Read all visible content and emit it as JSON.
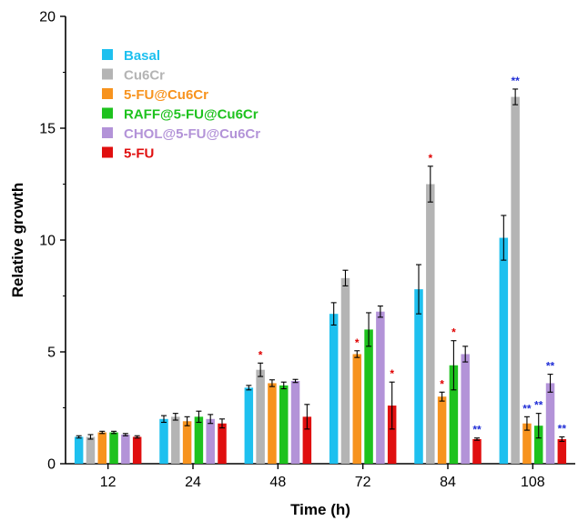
{
  "chart_data": {
    "type": "bar",
    "title": "",
    "xlabel": "Time (h)",
    "ylabel": "Relative growth",
    "ylim": [
      0,
      20
    ],
    "yticks": [
      0,
      5,
      10,
      15,
      20
    ],
    "grid": false,
    "legend": "top-left",
    "categories": [
      "12",
      "24",
      "48",
      "72",
      "84",
      "108"
    ],
    "series": [
      {
        "name": "Basal",
        "color": "#1ec0ef",
        "values": [
          1.2,
          2.0,
          3.4,
          6.7,
          7.8,
          10.1
        ],
        "errors": [
          0.05,
          0.15,
          0.1,
          0.5,
          1.1,
          1.0
        ],
        "sig": [
          "",
          "",
          "",
          "",
          "",
          ""
        ],
        "sig_color": [
          "",
          "",
          "",
          "",
          "",
          ""
        ]
      },
      {
        "name": "Cu6Cr",
        "color": "#b4b4b4",
        "values": [
          1.2,
          2.1,
          4.2,
          8.3,
          12.5,
          16.4
        ],
        "errors": [
          0.1,
          0.15,
          0.3,
          0.35,
          0.8,
          0.35
        ],
        "sig": [
          "",
          "",
          "*",
          "",
          "*",
          "**"
        ],
        "sig_color": [
          "",
          "",
          "#e00000",
          "",
          "#e00000",
          "#1f2dd6"
        ]
      },
      {
        "name": "5-FU@Cu6Cr",
        "color": "#f7931e",
        "values": [
          1.4,
          1.9,
          3.6,
          4.9,
          3.0,
          1.8
        ],
        "errors": [
          0.05,
          0.2,
          0.15,
          0.15,
          0.2,
          0.3
        ],
        "sig": [
          "",
          "",
          "",
          "*",
          "*",
          "**"
        ],
        "sig_color": [
          "",
          "",
          "",
          "#e00000",
          "#e00000",
          "#1f2dd6"
        ]
      },
      {
        "name": "RAFF@5-FU@Cu6Cr",
        "color": "#1ec21e",
        "values": [
          1.4,
          2.1,
          3.5,
          6.0,
          4.4,
          1.7
        ],
        "errors": [
          0.05,
          0.25,
          0.15,
          0.75,
          1.1,
          0.55
        ],
        "sig": [
          "",
          "",
          "",
          "",
          "*",
          "**"
        ],
        "sig_color": [
          "",
          "",
          "",
          "",
          "#e00000",
          "#1f2dd6"
        ]
      },
      {
        "name": "CHOL@5-FU@Cu6Cr",
        "color": "#b393d8",
        "values": [
          1.3,
          2.0,
          3.7,
          6.8,
          4.9,
          3.6
        ],
        "errors": [
          0.05,
          0.2,
          0.07,
          0.25,
          0.35,
          0.4
        ],
        "sig": [
          "",
          "",
          "",
          "",
          "",
          "**"
        ],
        "sig_color": [
          "",
          "",
          "",
          "",
          "",
          "#1f2dd6"
        ]
      },
      {
        "name": "5-FU",
        "color": "#e00f0f",
        "values": [
          1.2,
          1.8,
          2.1,
          2.6,
          1.1,
          1.1
        ],
        "errors": [
          0.05,
          0.2,
          0.55,
          1.05,
          0.05,
          0.1
        ],
        "sig": [
          "",
          "",
          "",
          "*",
          "**",
          "**"
        ],
        "sig_color": [
          "",
          "",
          "",
          "#e00000",
          "#1f2dd6",
          "#1f2dd6"
        ]
      }
    ]
  }
}
